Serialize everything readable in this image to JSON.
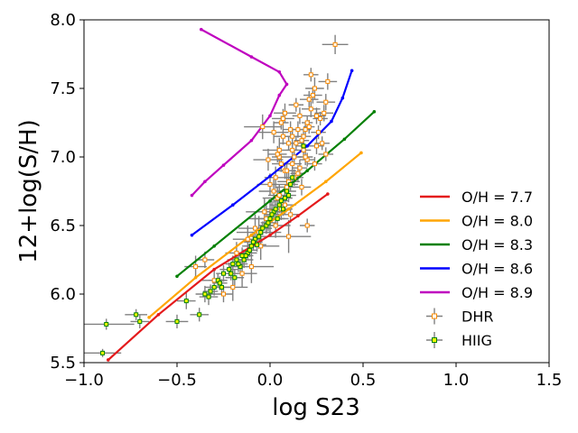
{
  "chart_data": {
    "type": "scatter",
    "title": "",
    "xlabel": "log S23",
    "ylabel": "12+log(S/H)",
    "xlim": [
      -1.0,
      1.5
    ],
    "ylim": [
      5.5,
      8.0
    ],
    "grid": false,
    "xticks": [
      -1.0,
      -0.5,
      0.0,
      0.5,
      1.0,
      1.5
    ],
    "xtick_labels": [
      "−1.0",
      "−0.5",
      "0.0",
      "0.5",
      "1.0",
      "1.5"
    ],
    "yticks": [
      5.5,
      6.0,
      6.5,
      7.0,
      7.5,
      8.0
    ],
    "ytick_labels": [
      "5.5",
      "6.0",
      "6.5",
      "7.0",
      "7.5",
      "8.0"
    ],
    "legend_position": "lower-right",
    "lines": [
      {
        "name": "O/H = 7.7",
        "color": "#e41a1c",
        "x": [
          -0.87,
          -0.6,
          -0.3,
          0.0,
          0.15,
          0.31
        ],
        "y": [
          5.52,
          5.85,
          6.18,
          6.43,
          6.57,
          6.73
        ]
      },
      {
        "name": "O/H = 8.0",
        "color": "#ffa500",
        "x": [
          -0.65,
          -0.4,
          -0.1,
          0.1,
          0.3,
          0.49
        ],
        "y": [
          5.83,
          6.12,
          6.43,
          6.62,
          6.82,
          7.03
        ]
      },
      {
        "name": "O/H = 8.3",
        "color": "#008000",
        "x": [
          -0.5,
          -0.3,
          0.0,
          0.2,
          0.4,
          0.56
        ],
        "y": [
          6.13,
          6.35,
          6.68,
          6.9,
          7.13,
          7.33
        ]
      },
      {
        "name": "O/H = 8.6",
        "color": "#0000ff",
        "x": [
          -0.42,
          -0.2,
          0.0,
          0.2,
          0.33,
          0.39,
          0.44
        ],
        "y": [
          6.43,
          6.65,
          6.86,
          7.08,
          7.26,
          7.43,
          7.63
        ]
      },
      {
        "name": "O/H = 8.9",
        "color": "#bf00bf",
        "x": [
          -0.42,
          -0.35,
          -0.25,
          -0.1,
          0.0,
          0.05,
          0.09,
          0.05,
          -0.1,
          -0.37
        ],
        "y": [
          6.72,
          6.82,
          6.94,
          7.12,
          7.3,
          7.45,
          7.53,
          7.62,
          7.73,
          7.93
        ]
      }
    ],
    "series": [
      {
        "name": "DHR",
        "marker_face": "#ffffff",
        "marker_edge": "#ff8c00",
        "errorbar_color": "#808080",
        "x": [
          0.05,
          0.1,
          0.15,
          0.2,
          0.25,
          0.08,
          0.12,
          0.18,
          0.22,
          0.03,
          0.0,
          0.06,
          0.14,
          0.19,
          0.27,
          0.3,
          0.24,
          0.16,
          0.11,
          0.07,
          0.02,
          -0.03,
          0.09,
          0.13,
          0.17,
          0.21,
          0.26,
          0.29,
          0.23,
          0.18,
          0.1,
          0.04,
          -0.02,
          -0.06,
          0.01,
          0.05,
          0.12,
          0.15,
          0.2,
          0.25,
          0.17,
          0.08,
          0.03,
          -0.05,
          -0.1,
          -0.15,
          -0.2,
          -0.3,
          -0.35,
          -0.4,
          -0.25,
          -0.18,
          -0.12,
          -0.08,
          0.0,
          0.06,
          0.11,
          0.06,
          0.14,
          0.21,
          0.28,
          0.31,
          0.35,
          0.22,
          0.19,
          0.16,
          0.13,
          0.09,
          0.07,
          0.04,
          -0.01,
          -0.04,
          0.02,
          0.08,
          0.12,
          0.1,
          0.05,
          0.3,
          0.24,
          0.2
        ],
        "y": [
          7.0,
          7.1,
          7.2,
          7.25,
          7.3,
          6.9,
          7.05,
          7.15,
          7.35,
          6.85,
          6.8,
          6.95,
          7.1,
          7.2,
          7.28,
          7.4,
          7.5,
          7.3,
          7.2,
          7.15,
          6.75,
          6.6,
          6.9,
          7.0,
          7.12,
          7.22,
          7.18,
          7.32,
          7.45,
          7.05,
          6.82,
          6.7,
          6.55,
          6.45,
          6.6,
          6.72,
          6.95,
          6.88,
          6.98,
          7.08,
          6.78,
          6.65,
          6.5,
          6.35,
          6.2,
          6.15,
          6.05,
          6.1,
          6.25,
          6.2,
          6.0,
          6.3,
          6.4,
          6.48,
          6.55,
          6.62,
          6.58,
          7.25,
          7.38,
          7.42,
          7.1,
          7.55,
          7.82,
          7.6,
          7.0,
          6.92,
          6.85,
          6.78,
          7.28,
          7.02,
          6.98,
          7.22,
          7.18,
          7.32,
          7.15,
          6.42,
          7.05,
          7.02,
          6.95,
          6.5
        ],
        "xerr": [
          0.04,
          0.05,
          0.04,
          0.03,
          0.05,
          0.04,
          0.03,
          0.04,
          0.05,
          0.06,
          0.07,
          0.05,
          0.04,
          0.03,
          0.04,
          0.05,
          0.05,
          0.04,
          0.04,
          0.05,
          0.08,
          0.1,
          0.05,
          0.04,
          0.04,
          0.03,
          0.04,
          0.05,
          0.05,
          0.04,
          0.06,
          0.08,
          0.1,
          0.12,
          0.08,
          0.06,
          0.05,
          0.04,
          0.04,
          0.04,
          0.05,
          0.06,
          0.08,
          0.1,
          0.12,
          0.08,
          0.08,
          0.07,
          0.05,
          0.06,
          0.05,
          0.06,
          0.08,
          0.09,
          0.1,
          0.06,
          0.05,
          0.04,
          0.04,
          0.05,
          0.04,
          0.05,
          0.07,
          0.04,
          0.04,
          0.04,
          0.05,
          0.06,
          0.06,
          0.05,
          0.08,
          0.1,
          0.08,
          0.06,
          0.05,
          0.12,
          0.09,
          0.04,
          0.04,
          0.04
        ],
        "yerr": [
          0.06,
          0.05,
          0.06,
          0.05,
          0.06,
          0.06,
          0.05,
          0.05,
          0.06,
          0.08,
          0.08,
          0.06,
          0.05,
          0.05,
          0.05,
          0.06,
          0.08,
          0.06,
          0.06,
          0.06,
          0.09,
          0.1,
          0.06,
          0.05,
          0.05,
          0.05,
          0.05,
          0.06,
          0.06,
          0.06,
          0.07,
          0.08,
          0.1,
          0.12,
          0.08,
          0.08,
          0.06,
          0.06,
          0.05,
          0.06,
          0.06,
          0.07,
          0.09,
          0.1,
          0.12,
          0.1,
          0.1,
          0.08,
          0.06,
          0.08,
          0.06,
          0.08,
          0.1,
          0.1,
          0.12,
          0.08,
          0.06,
          0.05,
          0.05,
          0.06,
          0.05,
          0.06,
          0.07,
          0.05,
          0.06,
          0.06,
          0.06,
          0.07,
          0.07,
          0.06,
          0.08,
          0.09,
          0.08,
          0.07,
          0.06,
          0.12,
          0.09,
          0.05,
          0.05,
          0.05
        ]
      },
      {
        "name": "HIIG",
        "marker_face": "#ffff00",
        "marker_edge": "#008000",
        "errorbar_color": "#808080",
        "x": [
          -0.88,
          -0.9,
          -0.72,
          -0.7,
          -0.5,
          -0.45,
          -0.38,
          -0.35,
          -0.32,
          -0.3,
          -0.28,
          -0.25,
          -0.22,
          -0.2,
          -0.18,
          -0.15,
          -0.12,
          -0.1,
          -0.08,
          -0.05,
          -0.02,
          0.0,
          0.02,
          0.05,
          0.08,
          0.1,
          -0.19,
          -0.16,
          -0.14,
          -0.11,
          -0.09,
          -0.06,
          -0.04,
          -0.01,
          0.01,
          0.03,
          0.06,
          0.09,
          0.11,
          -0.26,
          -0.21,
          -0.17,
          -0.13,
          -0.07,
          0.04,
          0.07,
          -0.33,
          -0.27,
          0.12,
          0.18
        ],
        "y": [
          5.78,
          5.57,
          5.85,
          5.8,
          5.8,
          5.95,
          5.85,
          6.0,
          6.02,
          6.05,
          6.1,
          6.15,
          6.18,
          6.22,
          6.25,
          6.28,
          6.3,
          6.35,
          6.4,
          6.45,
          6.5,
          6.55,
          6.6,
          6.65,
          6.7,
          6.72,
          6.12,
          6.2,
          6.25,
          6.32,
          6.38,
          6.42,
          6.48,
          6.52,
          6.58,
          6.62,
          6.68,
          6.75,
          6.8,
          6.05,
          6.15,
          6.22,
          6.28,
          6.36,
          6.55,
          6.62,
          5.98,
          6.08,
          6.85,
          7.08
        ],
        "xerr": [
          0.15,
          0.1,
          0.06,
          0.05,
          0.06,
          0.05,
          0.05,
          0.05,
          0.04,
          0.05,
          0.05,
          0.04,
          0.05,
          0.04,
          0.05,
          0.04,
          0.05,
          0.04,
          0.04,
          0.05,
          0.04,
          0.05,
          0.04,
          0.05,
          0.04,
          0.04,
          0.05,
          0.04,
          0.05,
          0.04,
          0.05,
          0.04,
          0.05,
          0.04,
          0.04,
          0.05,
          0.04,
          0.05,
          0.04,
          0.05,
          0.04,
          0.05,
          0.04,
          0.05,
          0.04,
          0.05,
          0.05,
          0.04,
          0.04,
          0.04
        ],
        "yerr": [
          0.04,
          0.03,
          0.04,
          0.05,
          0.05,
          0.06,
          0.05,
          0.06,
          0.05,
          0.06,
          0.05,
          0.06,
          0.05,
          0.06,
          0.05,
          0.06,
          0.05,
          0.05,
          0.06,
          0.05,
          0.06,
          0.05,
          0.05,
          0.06,
          0.05,
          0.05,
          0.06,
          0.05,
          0.06,
          0.05,
          0.06,
          0.05,
          0.05,
          0.06,
          0.05,
          0.06,
          0.05,
          0.05,
          0.05,
          0.06,
          0.05,
          0.06,
          0.05,
          0.05,
          0.05,
          0.05,
          0.06,
          0.05,
          0.05,
          0.05
        ]
      }
    ]
  }
}
